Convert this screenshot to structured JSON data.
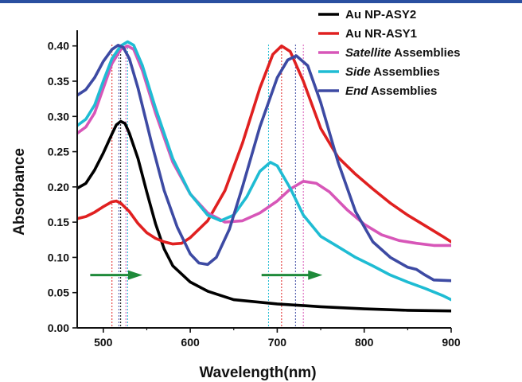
{
  "chart_data": {
    "type": "line",
    "xlabel": "Wavelength(nm)",
    "ylabel": "Absorbance",
    "xlim": [
      470,
      900
    ],
    "ylim": [
      0,
      0.42
    ],
    "x_ticks": [
      500,
      600,
      700,
      800,
      900
    ],
    "y_ticks": [
      "0.00",
      "0.05",
      "0.10",
      "0.15",
      "0.20",
      "0.25",
      "0.30",
      "0.35",
      "0.40"
    ],
    "legend": {
      "placement": "top-right",
      "entries": [
        {
          "prefix": "Au NP-ASY2",
          "suffix": ""
        },
        {
          "prefix": "Au NR-ASY1",
          "suffix": ""
        },
        {
          "prefix": "Satellite",
          "suffix": " Assemblies"
        },
        {
          "prefix": "Side",
          "suffix": " Assemblies"
        },
        {
          "prefix": "End",
          "suffix": " Assemblies"
        }
      ]
    },
    "series": [
      {
        "name": "Au NP-ASY2",
        "color": "#000000",
        "points": [
          [
            470,
            0.198
          ],
          [
            480,
            0.205
          ],
          [
            490,
            0.224
          ],
          [
            500,
            0.248
          ],
          [
            510,
            0.275
          ],
          [
            515,
            0.288
          ],
          [
            520,
            0.293
          ],
          [
            525,
            0.29
          ],
          [
            530,
            0.276
          ],
          [
            540,
            0.24
          ],
          [
            550,
            0.193
          ],
          [
            560,
            0.148
          ],
          [
            570,
            0.112
          ],
          [
            580,
            0.088
          ],
          [
            600,
            0.065
          ],
          [
            620,
            0.052
          ],
          [
            650,
            0.04
          ],
          [
            700,
            0.034
          ],
          [
            750,
            0.03
          ],
          [
            800,
            0.027
          ],
          [
            850,
            0.025
          ],
          [
            900,
            0.024
          ]
        ]
      },
      {
        "name": "Au NR-ASY1",
        "color": "#e02020",
        "points": [
          [
            470,
            0.155
          ],
          [
            480,
            0.158
          ],
          [
            490,
            0.164
          ],
          [
            500,
            0.172
          ],
          [
            510,
            0.179
          ],
          [
            515,
            0.18
          ],
          [
            520,
            0.177
          ],
          [
            530,
            0.165
          ],
          [
            540,
            0.148
          ],
          [
            550,
            0.135
          ],
          [
            560,
            0.127
          ],
          [
            570,
            0.122
          ],
          [
            580,
            0.119
          ],
          [
            590,
            0.12
          ],
          [
            600,
            0.128
          ],
          [
            620,
            0.152
          ],
          [
            640,
            0.195
          ],
          [
            660,
            0.262
          ],
          [
            680,
            0.34
          ],
          [
            695,
            0.388
          ],
          [
            705,
            0.4
          ],
          [
            715,
            0.392
          ],
          [
            730,
            0.35
          ],
          [
            750,
            0.283
          ],
          [
            770,
            0.242
          ],
          [
            790,
            0.218
          ],
          [
            810,
            0.197
          ],
          [
            830,
            0.177
          ],
          [
            850,
            0.16
          ],
          [
            870,
            0.145
          ],
          [
            890,
            0.13
          ],
          [
            900,
            0.122
          ]
        ]
      },
      {
        "name": "Satellite Assemblies",
        "color": "#d756b8",
        "points": [
          [
            470,
            0.276
          ],
          [
            480,
            0.285
          ],
          [
            490,
            0.305
          ],
          [
            500,
            0.34
          ],
          [
            510,
            0.375
          ],
          [
            520,
            0.395
          ],
          [
            528,
            0.4
          ],
          [
            535,
            0.395
          ],
          [
            545,
            0.365
          ],
          [
            560,
            0.305
          ],
          [
            580,
            0.235
          ],
          [
            600,
            0.19
          ],
          [
            620,
            0.163
          ],
          [
            640,
            0.15
          ],
          [
            660,
            0.152
          ],
          [
            680,
            0.163
          ],
          [
            700,
            0.18
          ],
          [
            715,
            0.197
          ],
          [
            730,
            0.208
          ],
          [
            745,
            0.205
          ],
          [
            760,
            0.193
          ],
          [
            780,
            0.168
          ],
          [
            800,
            0.147
          ],
          [
            820,
            0.132
          ],
          [
            840,
            0.124
          ],
          [
            860,
            0.12
          ],
          [
            880,
            0.117
          ],
          [
            900,
            0.117
          ]
        ]
      },
      {
        "name": "Side Assemblies",
        "color": "#1fbcd3",
        "points": [
          [
            470,
            0.287
          ],
          [
            480,
            0.296
          ],
          [
            490,
            0.316
          ],
          [
            500,
            0.35
          ],
          [
            510,
            0.382
          ],
          [
            520,
            0.4
          ],
          [
            528,
            0.406
          ],
          [
            535,
            0.401
          ],
          [
            545,
            0.372
          ],
          [
            560,
            0.312
          ],
          [
            580,
            0.24
          ],
          [
            600,
            0.19
          ],
          [
            620,
            0.16
          ],
          [
            635,
            0.152
          ],
          [
            650,
            0.16
          ],
          [
            665,
            0.186
          ],
          [
            680,
            0.222
          ],
          [
            692,
            0.235
          ],
          [
            700,
            0.23
          ],
          [
            715,
            0.198
          ],
          [
            730,
            0.16
          ],
          [
            750,
            0.13
          ],
          [
            770,
            0.115
          ],
          [
            790,
            0.1
          ],
          [
            810,
            0.088
          ],
          [
            830,
            0.075
          ],
          [
            850,
            0.065
          ],
          [
            870,
            0.056
          ],
          [
            890,
            0.046
          ],
          [
            900,
            0.04
          ]
        ]
      },
      {
        "name": "End Assemblies",
        "color": "#3d4aa3",
        "points": [
          [
            470,
            0.33
          ],
          [
            480,
            0.338
          ],
          [
            490,
            0.355
          ],
          [
            500,
            0.378
          ],
          [
            510,
            0.395
          ],
          [
            517,
            0.401
          ],
          [
            523,
            0.398
          ],
          [
            530,
            0.382
          ],
          [
            540,
            0.34
          ],
          [
            555,
            0.265
          ],
          [
            570,
            0.195
          ],
          [
            585,
            0.143
          ],
          [
            600,
            0.105
          ],
          [
            610,
            0.092
          ],
          [
            620,
            0.09
          ],
          [
            630,
            0.1
          ],
          [
            645,
            0.14
          ],
          [
            660,
            0.2
          ],
          [
            680,
            0.285
          ],
          [
            700,
            0.355
          ],
          [
            712,
            0.38
          ],
          [
            722,
            0.386
          ],
          [
            735,
            0.372
          ],
          [
            750,
            0.32
          ],
          [
            770,
            0.235
          ],
          [
            790,
            0.165
          ],
          [
            810,
            0.122
          ],
          [
            830,
            0.1
          ],
          [
            850,
            0.086
          ],
          [
            860,
            0.083
          ],
          [
            870,
            0.075
          ],
          [
            880,
            0.068
          ],
          [
            900,
            0.067
          ]
        ]
      }
    ],
    "reference_lines": [
      {
        "series": "Au NR-ASY1",
        "x": 510
      },
      {
        "series": "Au NR-ASY1",
        "x": 705
      },
      {
        "series": "Au NP-ASY2",
        "x": 520
      },
      {
        "series": "End Assemblies",
        "x": 518
      },
      {
        "series": "End Assemblies",
        "x": 721
      },
      {
        "series": "Satellite Assemblies",
        "x": 526
      },
      {
        "series": "Satellite Assemblies",
        "x": 730
      },
      {
        "series": "Side Assemblies",
        "x": 528
      },
      {
        "series": "Side Assemblies",
        "x": 690
      }
    ],
    "shift_arrows": [
      {
        "from_x": 485,
        "to_x": 545,
        "y": 0.075
      },
      {
        "from_x": 682,
        "to_x": 752,
        "y": 0.075
      }
    ],
    "arrow_color": "#1f8a3a",
    "frame_color": "#2a4fa0"
  }
}
